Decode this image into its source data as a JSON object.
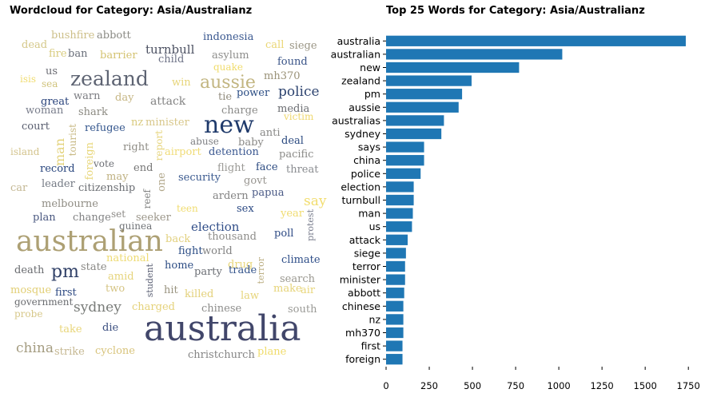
{
  "wordcloud": {
    "title": "Wordcloud for Category: Asia/Australianz",
    "words": [
      {
        "text": "australia",
        "color": "#41466a",
        "vertical": false
      },
      {
        "text": "australian",
        "color": "#ada074",
        "vertical": false
      },
      {
        "text": "new",
        "color": "#1f3a6b",
        "vertical": false
      },
      {
        "text": "zealand",
        "color": "#5e6473",
        "vertical": false
      },
      {
        "text": "aussie",
        "color": "#c2b580",
        "vertical": false
      },
      {
        "text": "pm",
        "color": "#2f3f66",
        "vertical": false
      },
      {
        "text": "sydney",
        "color": "#787b78",
        "vertical": false
      },
      {
        "text": "china",
        "color": "#a49c80",
        "vertical": false
      },
      {
        "text": "police",
        "color": "#2e4470",
        "vertical": false
      },
      {
        "text": "turnbull",
        "color": "#4d5263",
        "vertical": false
      },
      {
        "text": "election",
        "color": "#33508a",
        "vertical": false
      },
      {
        "text": "say",
        "color": "#f2dd6e",
        "vertical": false
      },
      {
        "text": "attack",
        "color": "#838383",
        "vertical": false
      },
      {
        "text": "indonesia",
        "color": "#3a5890",
        "vertical": false
      },
      {
        "text": "minister",
        "color": "#d8c78a",
        "vertical": false
      },
      {
        "text": "mh370",
        "color": "#9a9278",
        "vertical": false
      },
      {
        "text": "asylum",
        "color": "#8d8d8b",
        "vertical": false
      },
      {
        "text": "found",
        "color": "#3a5488",
        "vertical": false
      },
      {
        "text": "siege",
        "color": "#9a9584",
        "vertical": false
      },
      {
        "text": "call",
        "color": "#ead674",
        "vertical": false
      },
      {
        "text": "bushfire",
        "color": "#cdbf88",
        "vertical": false
      },
      {
        "text": "abbott",
        "color": "#8a8a84",
        "vertical": false
      },
      {
        "text": "dead",
        "color": "#d5c88a",
        "vertical": false
      },
      {
        "text": "fire",
        "color": "#d8cb7e",
        "vertical": false
      },
      {
        "text": "ban",
        "color": "#6a6f7a",
        "vertical": false
      },
      {
        "text": "barrier",
        "color": "#d4c371",
        "vertical": false
      },
      {
        "text": "child",
        "color": "#6d7286",
        "vertical": false
      },
      {
        "text": "quake",
        "color": "#f0dc6c",
        "vertical": false
      },
      {
        "text": "isis",
        "color": "#f0dc70",
        "vertical": false
      },
      {
        "text": "us",
        "color": "#6b6c73",
        "vertical": false
      },
      {
        "text": "sea",
        "color": "#d0c37c",
        "vertical": false
      },
      {
        "text": "win",
        "color": "#e7d57a",
        "vertical": false
      },
      {
        "text": "tie",
        "color": "#928d7e",
        "vertical": false
      },
      {
        "text": "power",
        "color": "#2b4d84",
        "vertical": false
      },
      {
        "text": "great",
        "color": "#27417a",
        "vertical": false
      },
      {
        "text": "warn",
        "color": "#7c7d82",
        "vertical": false
      },
      {
        "text": "day",
        "color": "#c6b684",
        "vertical": false
      },
      {
        "text": "woman",
        "color": "#7a7e8c",
        "vertical": false
      },
      {
        "text": "shark",
        "color": "#8c8a82",
        "vertical": false
      },
      {
        "text": "charge",
        "color": "#8b8b89",
        "vertical": false
      },
      {
        "text": "media",
        "color": "#6c6e72",
        "vertical": false
      },
      {
        "text": "victim",
        "color": "#efd86e",
        "vertical": false
      },
      {
        "text": "nz",
        "color": "#d9ca7e",
        "vertical": false
      },
      {
        "text": "court",
        "color": "#5a5f70",
        "vertical": false
      },
      {
        "text": "refugee",
        "color": "#34568d",
        "vertical": false
      },
      {
        "text": "anti",
        "color": "#888886",
        "vertical": false
      },
      {
        "text": "island",
        "color": "#d3c38c",
        "vertical": false
      },
      {
        "text": "man",
        "color": "#e3d27a",
        "vertical": true
      },
      {
        "text": "tourist",
        "color": "#c8b984",
        "vertical": true
      },
      {
        "text": "right",
        "color": "#8f8d86",
        "vertical": false
      },
      {
        "text": "report",
        "color": "#e6d47c",
        "vertical": true
      },
      {
        "text": "airport",
        "color": "#f0dc78",
        "vertical": false
      },
      {
        "text": "abuse",
        "color": "#7f8084",
        "vertical": false
      },
      {
        "text": "baby",
        "color": "#898886",
        "vertical": false
      },
      {
        "text": "deal",
        "color": "#2b4a80",
        "vertical": false
      },
      {
        "text": "detention",
        "color": "#3a5790",
        "vertical": false
      },
      {
        "text": "pacific",
        "color": "#8b8b88",
        "vertical": false
      },
      {
        "text": "foreign",
        "color": "#e8d77c",
        "vertical": true
      },
      {
        "text": "vote",
        "color": "#6c6e74",
        "vertical": false
      },
      {
        "text": "record",
        "color": "#28457d",
        "vertical": false
      },
      {
        "text": "end",
        "color": "#767676",
        "vertical": false
      },
      {
        "text": "flight",
        "color": "#9b9a96",
        "vertical": false
      },
      {
        "text": "face",
        "color": "#2b4a80",
        "vertical": false
      },
      {
        "text": "threat",
        "color": "#8a8c90",
        "vertical": false
      },
      {
        "text": "may",
        "color": "#bfb182",
        "vertical": false
      },
      {
        "text": "one",
        "color": "#b1a78a",
        "vertical": true
      },
      {
        "text": "security",
        "color": "#3b5a8f",
        "vertical": false
      },
      {
        "text": "govt",
        "color": "#989590",
        "vertical": false
      },
      {
        "text": "car",
        "color": "#c4b894",
        "vertical": false
      },
      {
        "text": "leader",
        "color": "#747a84",
        "vertical": false
      },
      {
        "text": "citizenship",
        "color": "#6a6d72",
        "vertical": false
      },
      {
        "text": "reef",
        "color": "#828382",
        "vertical": true
      },
      {
        "text": "ardern",
        "color": "#838383",
        "vertical": false
      },
      {
        "text": "papua",
        "color": "#4a5a86",
        "vertical": false
      },
      {
        "text": "melbourne",
        "color": "#908d84",
        "vertical": false
      },
      {
        "text": "teen",
        "color": "#f0dc70",
        "vertical": false
      },
      {
        "text": "sex",
        "color": "#2c4a84",
        "vertical": false
      },
      {
        "text": "year",
        "color": "#f0dc70",
        "vertical": false
      },
      {
        "text": "plan",
        "color": "#4a5880",
        "vertical": false
      },
      {
        "text": "change",
        "color": "#828384",
        "vertical": false
      },
      {
        "text": "set",
        "color": "#8c8a86",
        "vertical": false
      },
      {
        "text": "seeker",
        "color": "#9b968a",
        "vertical": false
      },
      {
        "text": "guinea",
        "color": "#6f7276",
        "vertical": false
      },
      {
        "text": "protest",
        "color": "#7c8090",
        "vertical": true
      },
      {
        "text": "poll",
        "color": "#2d4a84",
        "vertical": false
      },
      {
        "text": "thousand",
        "color": "#8e8d8a",
        "vertical": false
      },
      {
        "text": "back",
        "color": "#e2d07e",
        "vertical": false
      },
      {
        "text": "national",
        "color": "#eedb74",
        "vertical": false
      },
      {
        "text": "fight",
        "color": "#2d4e86",
        "vertical": false
      },
      {
        "text": "world",
        "color": "#838383",
        "vertical": false
      },
      {
        "text": "home",
        "color": "#2f4f86",
        "vertical": false
      },
      {
        "text": "party",
        "color": "#6b6e74",
        "vertical": false
      },
      {
        "text": "drug",
        "color": "#e8d67a",
        "vertical": false
      },
      {
        "text": "trade",
        "color": "#35558c",
        "vertical": false
      },
      {
        "text": "terror",
        "color": "#bcaf84",
        "vertical": true
      },
      {
        "text": "climate",
        "color": "#2e4e88",
        "vertical": false
      },
      {
        "text": "death",
        "color": "#6a6c70",
        "vertical": false
      },
      {
        "text": "state",
        "color": "#8a8986",
        "vertical": false
      },
      {
        "text": "student",
        "color": "#5b6074",
        "vertical": true
      },
      {
        "text": "amid",
        "color": "#e6d47c",
        "vertical": false
      },
      {
        "text": "search",
        "color": "#9a9890",
        "vertical": false
      },
      {
        "text": "mosque",
        "color": "#e2cf76",
        "vertical": false
      },
      {
        "text": "first",
        "color": "#2e4a82",
        "vertical": false
      },
      {
        "text": "two",
        "color": "#d5c484",
        "vertical": false
      },
      {
        "text": "hit",
        "color": "#9a9480",
        "vertical": false
      },
      {
        "text": "killed",
        "color": "#e3d07a",
        "vertical": false
      },
      {
        "text": "law",
        "color": "#e6d47a",
        "vertical": false
      },
      {
        "text": "make",
        "color": "#e6d47a",
        "vertical": false
      },
      {
        "text": "air",
        "color": "#e8d67a",
        "vertical": false
      },
      {
        "text": "government",
        "color": "#6a6c70",
        "vertical": false
      },
      {
        "text": "charged",
        "color": "#e5d27a",
        "vertical": false
      },
      {
        "text": "chinese",
        "color": "#8d8d8b",
        "vertical": false
      },
      {
        "text": "south",
        "color": "#9a9a96",
        "vertical": false
      },
      {
        "text": "probe",
        "color": "#d7c88a",
        "vertical": false
      },
      {
        "text": "take",
        "color": "#e8d67a",
        "vertical": false
      },
      {
        "text": "die",
        "color": "#3b4f80",
        "vertical": false
      },
      {
        "text": "strike",
        "color": "#c6b892",
        "vertical": false
      },
      {
        "text": "cyclone",
        "color": "#d8c47c",
        "vertical": false
      },
      {
        "text": "christchurch",
        "color": "#858585",
        "vertical": false
      },
      {
        "text": "plane",
        "color": "#f0dc6c",
        "vertical": false
      }
    ]
  },
  "chart_data": {
    "type": "bar",
    "orientation": "horizontal",
    "title": "Top 25 Words for Category: Asia/Australianz",
    "xlabel": "",
    "ylabel": "",
    "bar_color": "#1f77b4",
    "xlim": [
      0,
      1800
    ],
    "xticks": [
      0,
      250,
      500,
      750,
      1000,
      1250,
      1500,
      1750
    ],
    "grid": false,
    "categories": [
      "australia",
      "australian",
      "new",
      "zealand",
      "pm",
      "aussie",
      "australias",
      "sydney",
      "says",
      "china",
      "police",
      "election",
      "turnbull",
      "man",
      "us",
      "attack",
      "siege",
      "terror",
      "minister",
      "abbott",
      "chinese",
      "nz",
      "mh370",
      "first",
      "foreign"
    ],
    "values": [
      1735,
      1020,
      770,
      495,
      440,
      420,
      335,
      320,
      220,
      220,
      200,
      160,
      160,
      155,
      150,
      125,
      115,
      110,
      110,
      105,
      100,
      100,
      100,
      95,
      95
    ]
  }
}
